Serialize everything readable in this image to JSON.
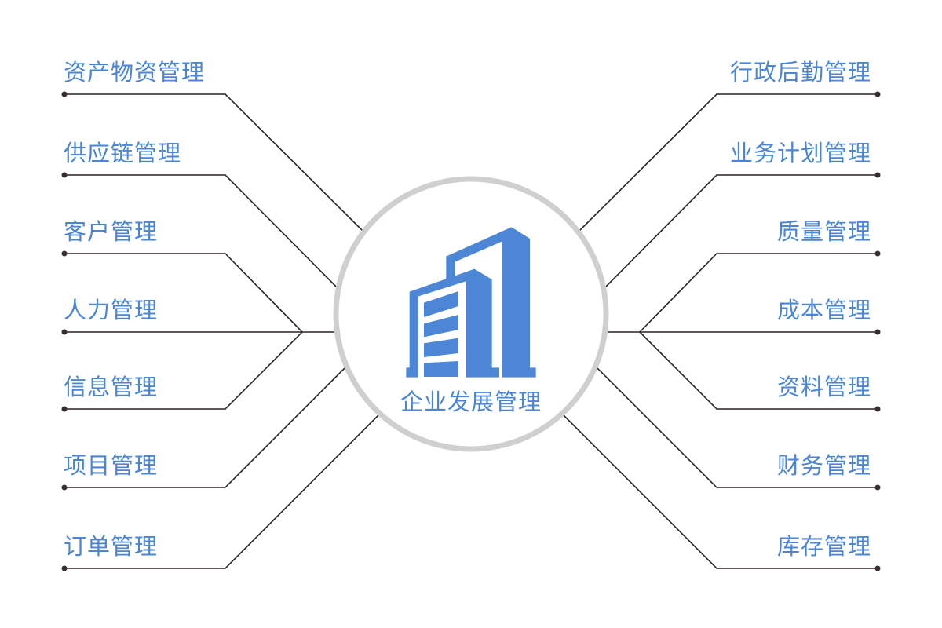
{
  "center": {
    "title": "企业发展管理",
    "icon": "office-building-icon"
  },
  "left_items": [
    "资产物资管理",
    "供应链管理",
    "客户管理",
    "人力管理",
    "信息管理",
    "项目管理",
    "订单管理"
  ],
  "right_items": [
    "行政后勤管理",
    "业务计划管理",
    "质量管理",
    "成本管理",
    "资料管理",
    "财务管理",
    "库存管理"
  ],
  "colors": {
    "accent": "#4a86d4",
    "ring": "#cfcfcf",
    "line": "#2a2224"
  }
}
